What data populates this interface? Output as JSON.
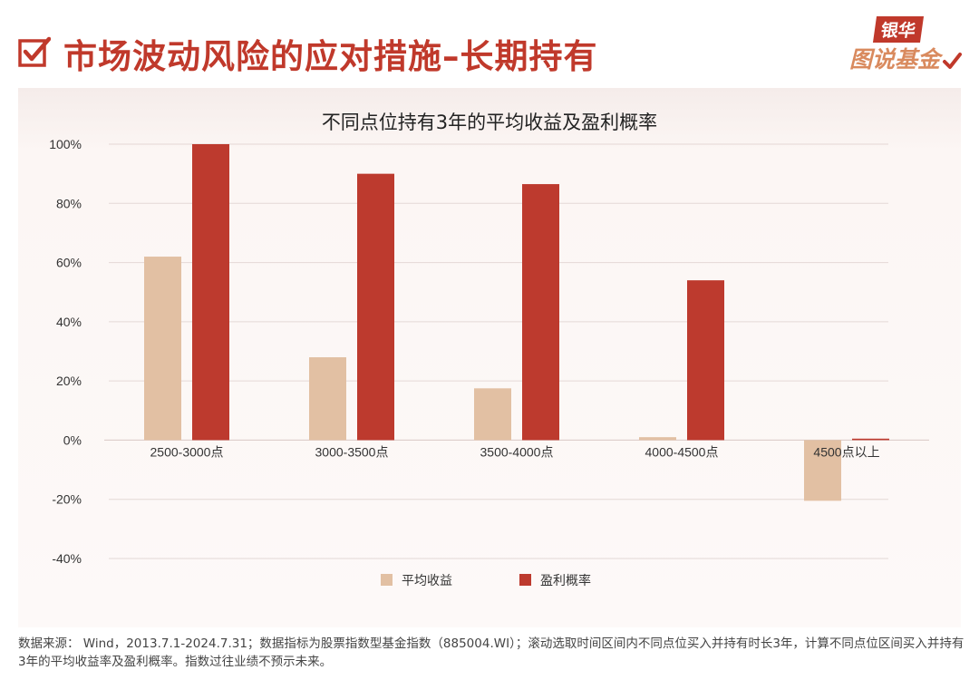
{
  "header": {
    "title": "市场波动风险的应对措施–长期持有",
    "logo_top": "银华",
    "logo_bottom": "图说基金"
  },
  "colors": {
    "accent": "#c0392b",
    "avg_return": "#e2c0a3",
    "win_rate": "#bd3a2e",
    "grid": "#e4d8d6"
  },
  "chart_data": {
    "type": "bar",
    "title": "不同点位持有3年的平均收益及盈利概率",
    "categories": [
      "2500-3000点",
      "3000-3500点",
      "3500-4000点",
      "4000-4500点",
      "4500点以上"
    ],
    "series": [
      {
        "name": "平均收益",
        "values": [
          62,
          28,
          17.5,
          1,
          -20.5
        ]
      },
      {
        "name": "盈利概率",
        "values": [
          100,
          90,
          86.5,
          54,
          0.5
        ]
      }
    ],
    "ylim": [
      -40,
      100
    ],
    "yticks": [
      "100%",
      "80%",
      "60%",
      "40%",
      "20%",
      "0%",
      "-20%",
      "-40%"
    ],
    "ytick_values": [
      100,
      80,
      60,
      40,
      20,
      0,
      -20,
      -40
    ],
    "grid": true,
    "legend_position": "bottom"
  },
  "footnote": "数据来源： Wind，2013.7.1-2024.7.31；数据指标为股票指数型基金指数（885004.WI）；滚动选取时间区间内不同点位买入并持有时长3年，计算不同点位区间买入并持有3年的平均收益率及盈利概率。指数过往业绩不预示未来。"
}
